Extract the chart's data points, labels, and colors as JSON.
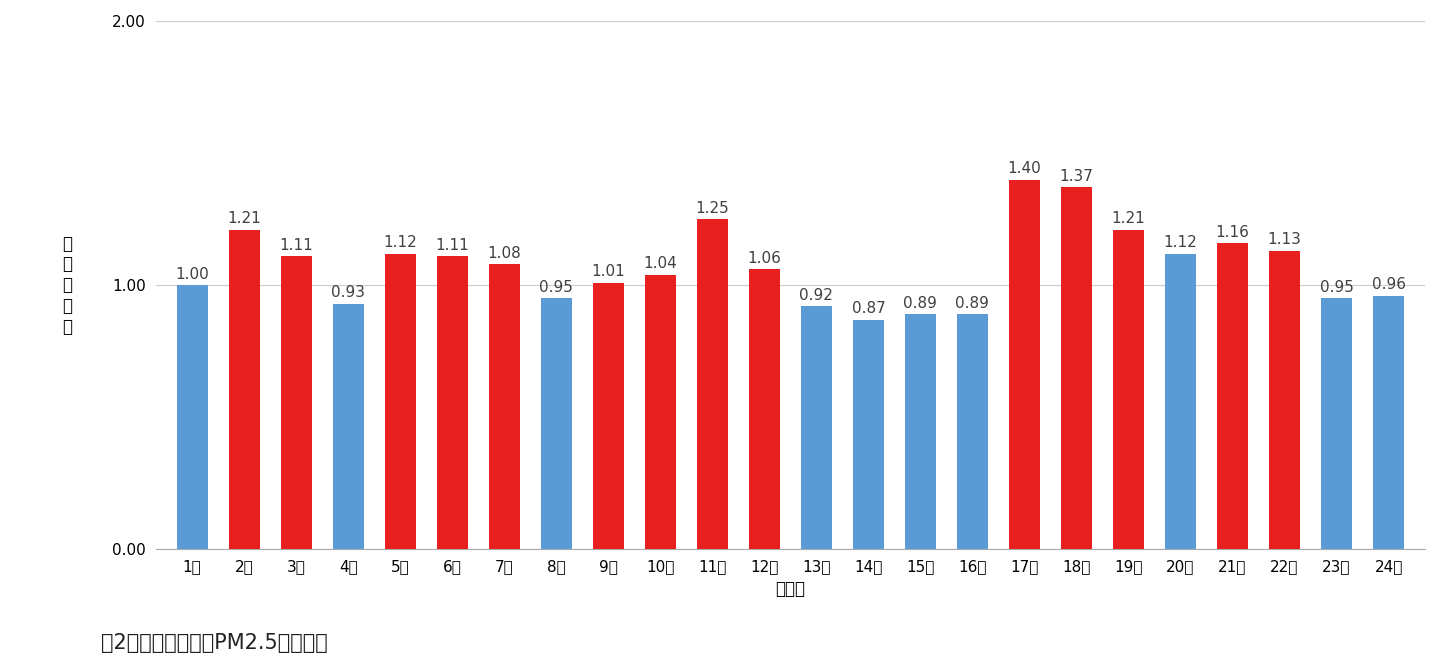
{
  "hours": [
    "1時",
    "2時",
    "3時",
    "4時",
    "5時",
    "6時",
    "7時",
    "8時",
    "9時",
    "10時",
    "11時",
    "12時",
    "13時",
    "14時",
    "15時",
    "16時",
    "17時",
    "18時",
    "19時",
    "20時",
    "21時",
    "22時",
    "23時",
    "24時"
  ],
  "values": [
    1.0,
    1.21,
    1.11,
    0.93,
    1.12,
    1.11,
    1.08,
    0.95,
    1.01,
    1.04,
    1.25,
    1.06,
    0.92,
    0.87,
    0.89,
    0.89,
    1.4,
    1.37,
    1.21,
    1.12,
    1.16,
    1.13,
    0.95,
    0.96
  ],
  "bar_colors": [
    "#5b9bd5",
    "#e82020",
    "#e82020",
    "#5b9bd5",
    "#e82020",
    "#e82020",
    "#e82020",
    "#5b9bd5",
    "#e82020",
    "#e82020",
    "#e82020",
    "#e82020",
    "#5b9bd5",
    "#5b9bd5",
    "#5b9bd5",
    "#5b9bd5",
    "#e82020",
    "#e82020",
    "#e82020",
    "#5b9bd5",
    "#e82020",
    "#e82020",
    "#5b9bd5",
    "#5b9bd5"
  ],
  "xlabel": "時間帯",
  "ylabel": "室内／大気",
  "ylabel_chars": [
    "室",
    "内",
    "／",
    "大",
    "気"
  ],
  "ylim": [
    0.0,
    2.0
  ],
  "yticks": [
    0.0,
    1.0,
    2.0
  ],
  "ytick_labels": [
    "0.00",
    "1.00",
    "2.00"
  ],
  "caption": "囲2　室内と大気中PM2.5濃度の比",
  "background_color": "#ffffff",
  "bar_width": 0.6,
  "label_fontsize": 11,
  "axis_label_fontsize": 12,
  "caption_fontsize": 15,
  "value_color": "#404040"
}
